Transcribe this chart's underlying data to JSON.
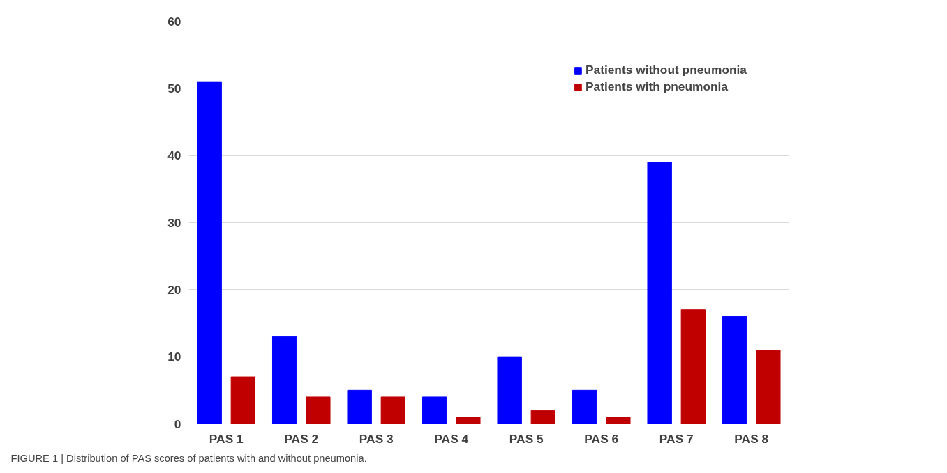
{
  "chart_data": {
    "type": "bar",
    "categories": [
      "PAS 1",
      "PAS 2",
      "PAS 3",
      "PAS 4",
      "PAS 5",
      "PAS 6",
      "PAS 7",
      "PAS 8"
    ],
    "series": [
      {
        "name": "Patients without pneumonia",
        "color": "#0000ff",
        "values": [
          51,
          13,
          5,
          4,
          10,
          5,
          39,
          16
        ]
      },
      {
        "name": "Patients with pneumonia",
        "color": "#c00000",
        "values": [
          7,
          4,
          4,
          1,
          2,
          1,
          17,
          11
        ]
      }
    ],
    "ylim": [
      0,
      60
    ],
    "yticks": [
      0,
      10,
      20,
      30,
      40,
      50,
      60
    ],
    "grid": "y",
    "legend": "top right",
    "annotations": [
      "FIGURE 1 | Distribution of PAS scores of patients with and without pneumonia."
    ]
  }
}
